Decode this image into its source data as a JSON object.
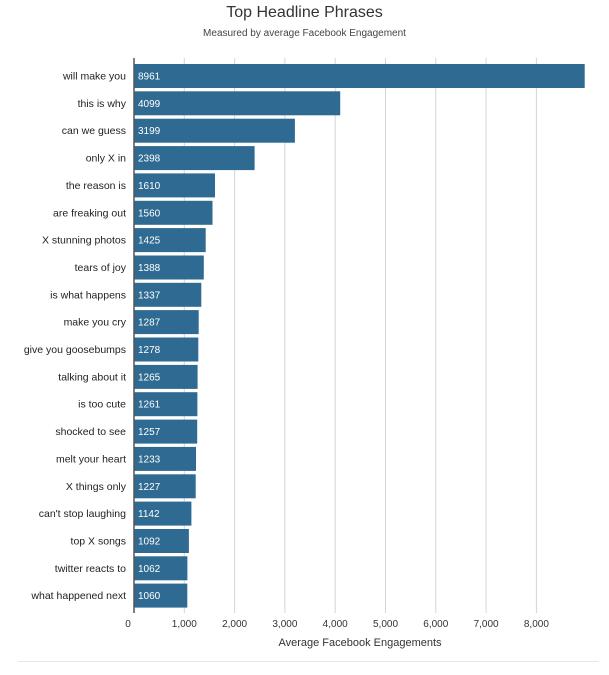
{
  "chart_data": {
    "type": "bar",
    "orientation": "horizontal",
    "title": "Top Headline Phrases",
    "subtitle": "Measured by average Facebook Engagement",
    "xlabel": "Average Facebook Engagements",
    "ylabel": "",
    "xlim": [
      0,
      9000
    ],
    "xticks": [
      0,
      1000,
      2000,
      3000,
      4000,
      5000,
      6000,
      7000,
      8000
    ],
    "xtick_labels": [
      "0",
      "1,000",
      "2,000",
      "3,000",
      "4,000",
      "5,000",
      "6,000",
      "7,000",
      "8,000"
    ],
    "grid": "vertical",
    "legend": "none",
    "bar_color": "#2e6a91",
    "label_color": "#ffffff",
    "categories": [
      "will make you",
      "this is why",
      "can we guess",
      "only X in",
      "the reason is",
      "are freaking out",
      "X stunning photos",
      "tears of joy",
      "is what happens",
      "make you cry",
      "give you goosebumps",
      "talking about it",
      "is too cute",
      "shocked to see",
      "melt your heart",
      "X things only",
      "can't stop laughing",
      "top X songs",
      "twitter reacts to",
      "what happened next"
    ],
    "values": [
      8961,
      4099,
      3199,
      2398,
      1610,
      1560,
      1425,
      1388,
      1337,
      1287,
      1278,
      1265,
      1261,
      1257,
      1233,
      1227,
      1142,
      1092,
      1062,
      1060
    ]
  }
}
